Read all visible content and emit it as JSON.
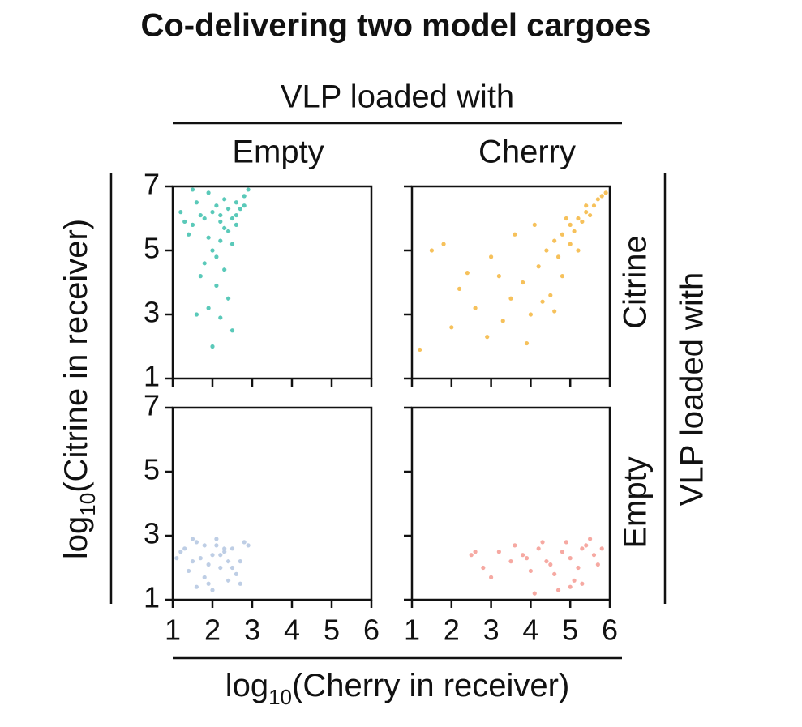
{
  "title": "Co-delivering two model cargoes",
  "column_header": "VLP loaded with",
  "columns": [
    "Empty",
    "Cherry"
  ],
  "row_header": "VLP loaded with",
  "rows": [
    "Citrine",
    "Empty"
  ],
  "x_label": {
    "prefix": "log",
    "subscript": "10",
    "rest": "(Cherry in receiver)"
  },
  "y_label": {
    "prefix": "log",
    "subscript": "10",
    "rest": "(Citrine in receiver)"
  },
  "chart_data": [
    {
      "type": "scatter",
      "color": "#3dbfad",
      "x": [
        1.8,
        2.0,
        2.2,
        2.4,
        2.6,
        1.5,
        1.7,
        2.1,
        2.3,
        2.5,
        2.8,
        1.2,
        1.4,
        1.9,
        2.2,
        2.6,
        2.9,
        1.6,
        2.0,
        2.4,
        2.7,
        1.3,
        1.8,
        2.3,
        2.5,
        2.1,
        1.9,
        2.2,
        2.0,
        1.6,
        2.4,
        1.7,
        2.3,
        2.6,
        1.5,
        2.8,
        2.2,
        1.9,
        2.1,
        2.5
      ],
      "y": [
        6.0,
        6.2,
        5.9,
        6.3,
        6.5,
        5.8,
        6.1,
        6.4,
        5.7,
        6.0,
        6.7,
        6.2,
        5.5,
        6.8,
        5.3,
        6.1,
        6.9,
        6.5,
        5.0,
        5.6,
        6.3,
        5.9,
        4.6,
        4.4,
        5.2,
        3.9,
        3.2,
        2.9,
        2.0,
        3.0,
        3.5,
        4.2,
        6.6,
        5.8,
        6.9,
        6.4,
        6.1,
        5.4,
        4.8,
        2.5
      ],
      "xlim": [
        1,
        6
      ],
      "ylim": [
        1,
        7
      ],
      "xticks": [
        1,
        2,
        3,
        4,
        5,
        6
      ],
      "yticks": [
        1,
        3,
        5,
        7
      ]
    },
    {
      "type": "scatter",
      "color": "#f5b63e",
      "x": [
        5.0,
        5.2,
        4.8,
        5.4,
        5.6,
        4.6,
        5.1,
        4.9,
        5.3,
        5.7,
        4.4,
        5.5,
        5.8,
        4.7,
        5.0,
        4.2,
        3.8,
        3.5,
        3.0,
        2.6,
        2.2,
        1.8,
        1.2,
        3.3,
        4.0,
        4.5,
        3.6,
        2.9,
        4.3,
        2.4,
        1.5,
        3.9,
        4.8,
        5.2,
        5.9,
        4.1,
        3.2,
        2.0,
        4.6,
        5.4
      ],
      "y": [
        5.8,
        6.0,
        5.5,
        6.2,
        6.4,
        5.3,
        5.6,
        6.0,
        5.9,
        6.6,
        5.0,
        6.1,
        6.7,
        4.8,
        5.2,
        4.5,
        4.0,
        3.5,
        4.8,
        3.2,
        3.8,
        5.2,
        1.9,
        2.8,
        3.0,
        3.6,
        5.5,
        2.3,
        3.4,
        4.3,
        5.0,
        2.1,
        4.2,
        5.0,
        6.8,
        5.8,
        4.2,
        2.6,
        3.1,
        6.4
      ],
      "xlim": [
        1,
        6
      ],
      "ylim": [
        1,
        7
      ],
      "xticks": [
        1,
        2,
        3,
        4,
        5,
        6
      ],
      "yticks": [
        1,
        3,
        5,
        7
      ]
    },
    {
      "type": "scatter",
      "color": "#b3c6e0",
      "x": [
        1.2,
        1.5,
        1.8,
        2.0,
        2.2,
        2.5,
        2.8,
        1.4,
        1.7,
        2.1,
        2.4,
        2.7,
        1.3,
        1.6,
        1.9,
        2.3,
        2.6,
        2.9,
        1.5,
        2.0,
        2.2,
        1.8,
        2.5,
        1.1,
        2.7,
        2.1,
        1.6,
        2.4,
        1.9,
        2.3
      ],
      "y": [
        2.5,
        2.2,
        2.7,
        2.4,
        2.0,
        2.6,
        2.8,
        1.9,
        2.3,
        2.9,
        1.6,
        2.2,
        2.6,
        1.4,
        2.1,
        2.5,
        1.8,
        2.7,
        2.9,
        1.3,
        2.4,
        1.7,
        2.0,
        2.3,
        1.5,
        2.7,
        2.8,
        2.2,
        1.5,
        2.6
      ],
      "xlim": [
        1,
        6
      ],
      "ylim": [
        1,
        7
      ],
      "xticks": [
        1,
        2,
        3,
        4,
        5,
        6
      ],
      "yticks": [
        1,
        3,
        5,
        7
      ]
    },
    {
      "type": "scatter",
      "color": "#f49a92",
      "x": [
        5.0,
        5.2,
        4.8,
        5.4,
        4.6,
        5.6,
        4.4,
        5.1,
        4.9,
        5.3,
        5.7,
        4.2,
        4.0,
        3.8,
        3.5,
        3.2,
        2.8,
        2.5,
        3.0,
        4.7,
        5.5,
        5.8,
        4.3,
        3.6,
        2.6,
        4.5,
        5.0,
        5.3,
        4.1,
        3.9
      ],
      "y": [
        2.3,
        2.0,
        2.5,
        2.7,
        1.8,
        2.4,
        2.2,
        1.6,
        2.8,
        1.5,
        2.1,
        2.6,
        1.9,
        2.4,
        2.2,
        2.5,
        2.0,
        2.4,
        1.7,
        1.3,
        2.9,
        2.6,
        2.8,
        2.7,
        2.5,
        2.1,
        1.4,
        2.6,
        1.2,
        2.3
      ],
      "xlim": [
        1,
        6
      ],
      "ylim": [
        1,
        7
      ],
      "xticks": [
        1,
        2,
        3,
        4,
        5,
        6
      ],
      "yticks": [
        1,
        3,
        5,
        7
      ]
    }
  ]
}
